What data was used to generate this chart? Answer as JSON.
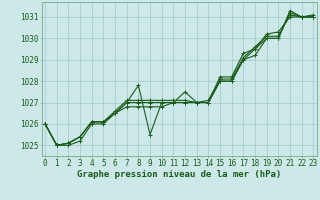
{
  "title": "Graphe pression niveau de la mer (hPa)",
  "background_color": "#cce8e8",
  "grid_color": "#aacccc",
  "line_color": "#1a5c1a",
  "ylabel_values": [
    1025,
    1026,
    1027,
    1028,
    1029,
    1030,
    1031
  ],
  "ylim": [
    1024.5,
    1031.7
  ],
  "xlim": [
    -0.3,
    23.3
  ],
  "xticks": [
    0,
    1,
    2,
    3,
    4,
    5,
    6,
    7,
    8,
    9,
    10,
    11,
    12,
    13,
    14,
    15,
    16,
    17,
    18,
    19,
    20,
    21,
    22,
    23
  ],
  "series": [
    [
      1026.0,
      1025.0,
      1025.0,
      1025.2,
      1026.0,
      1026.0,
      1026.5,
      1027.0,
      1027.8,
      1025.5,
      1027.0,
      1027.0,
      1027.5,
      1027.0,
      1027.0,
      1028.0,
      1028.0,
      1029.0,
      1029.2,
      1030.0,
      1030.0,
      1031.3,
      1031.0,
      1031.0
    ],
    [
      1026.0,
      1025.0,
      1025.1,
      1025.4,
      1026.1,
      1026.1,
      1026.5,
      1026.8,
      1026.8,
      1026.8,
      1026.8,
      1027.0,
      1027.0,
      1027.0,
      1027.0,
      1028.2,
      1028.2,
      1029.3,
      1029.5,
      1030.2,
      1030.3,
      1031.0,
      1031.0,
      1031.1
    ],
    [
      1026.0,
      1025.0,
      1025.1,
      1025.4,
      1026.1,
      1026.1,
      1026.5,
      1027.0,
      1027.0,
      1027.0,
      1027.0,
      1027.0,
      1027.0,
      1027.0,
      1027.0,
      1028.0,
      1028.0,
      1029.0,
      1029.5,
      1030.0,
      1030.0,
      1031.2,
      1031.0,
      1031.0
    ],
    [
      1026.0,
      1025.0,
      1025.1,
      1025.4,
      1026.1,
      1026.1,
      1026.6,
      1027.1,
      1027.1,
      1027.1,
      1027.1,
      1027.1,
      1027.1,
      1027.0,
      1027.1,
      1028.1,
      1028.1,
      1029.1,
      1029.6,
      1030.1,
      1030.1,
      1031.1,
      1031.0,
      1031.0
    ]
  ],
  "marker": "+",
  "markersize": 3,
  "linewidth": 0.8,
  "tick_fontsize": 5.5,
  "xlabel_fontsize": 6.5
}
